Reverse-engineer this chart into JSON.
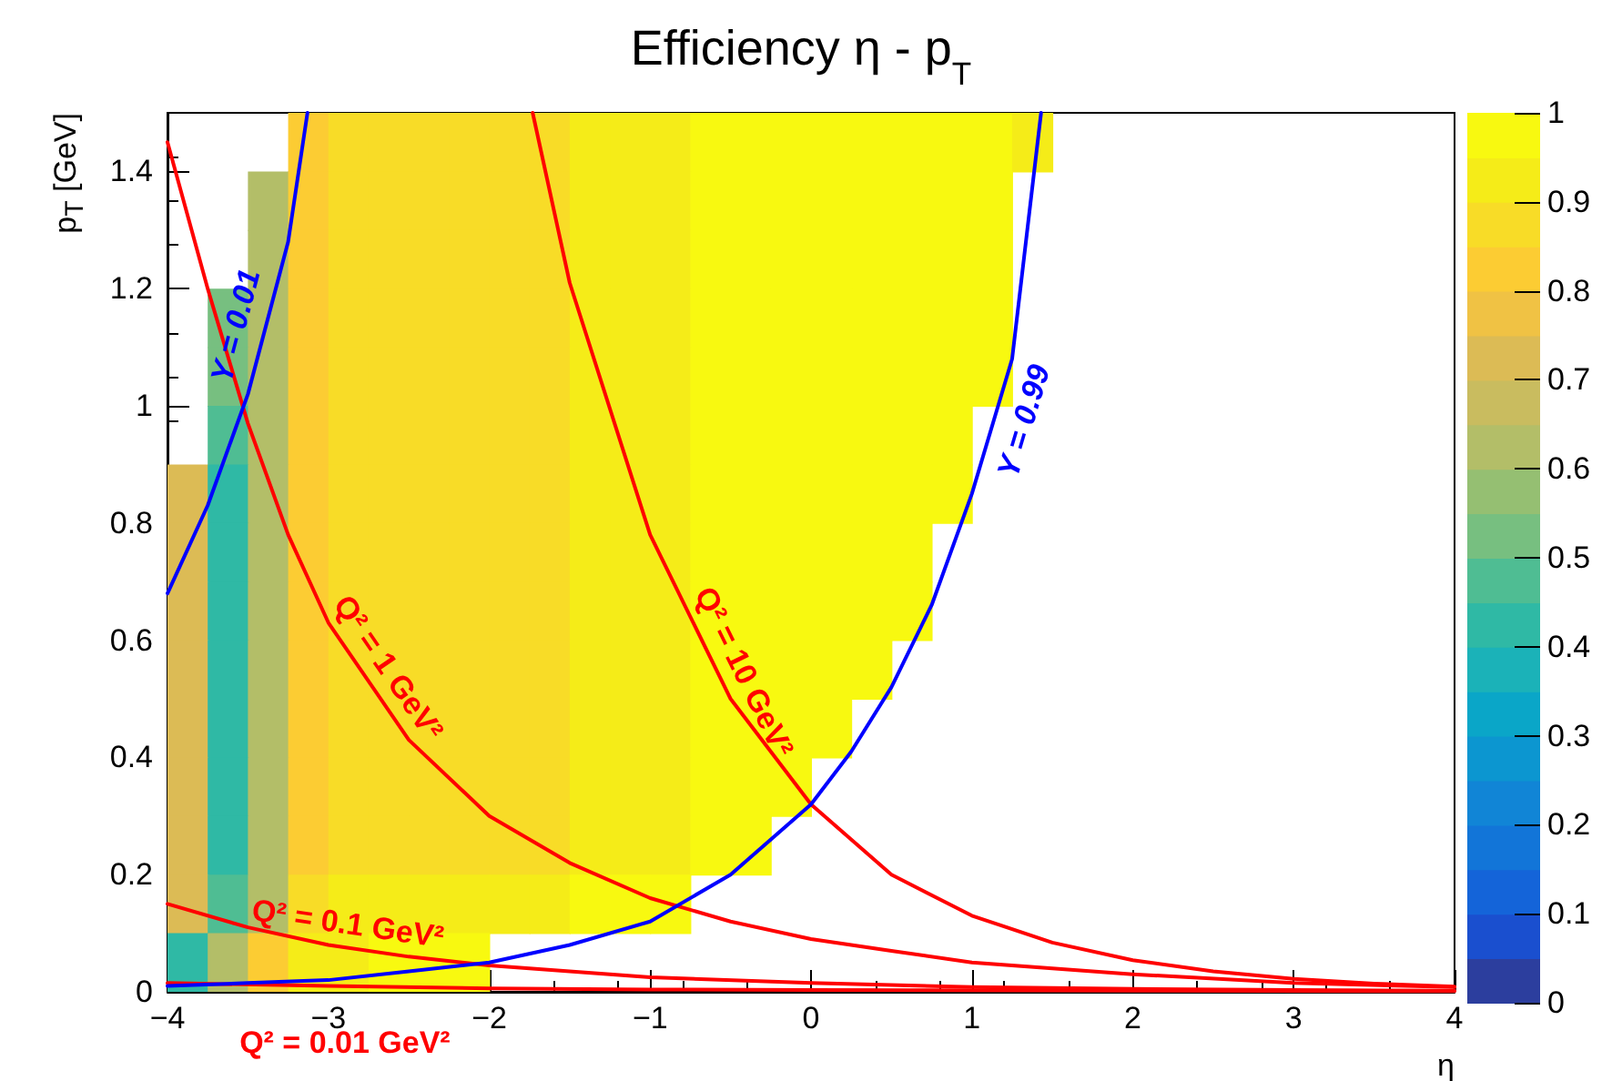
{
  "chart_data": {
    "type": "heatmap",
    "title": "Efficiency η - p$_{T}$",
    "xlabel": "η",
    "ylabel": "p$_{T}$ [GeV]",
    "x": [
      -3.875,
      -3.625,
      -3.375,
      -3.125,
      -2.875,
      -2.625,
      -2.375,
      -2.125,
      -1.875,
      -1.625,
      -1.375,
      -1.125,
      -0.875,
      -0.625,
      -0.375,
      -0.125,
      0.125,
      0.375,
      0.625,
      0.875,
      1.125,
      1.375
    ],
    "y": [
      1.45,
      1.35,
      1.25,
      1.15,
      1.05,
      0.95,
      0.85,
      0.75,
      0.65,
      0.55,
      0.45,
      0.35,
      0.25,
      0.15,
      0.05
    ],
    "cells": [
      [
        null,
        null,
        null,
        0.8,
        0.85,
        0.85,
        0.85,
        0.87,
        0.87,
        0.88,
        0.9,
        0.9,
        0.92,
        0.95,
        0.97,
        1,
        1,
        1,
        1,
        1,
        1,
        0.9
      ],
      [
        null,
        null,
        0.6,
        0.8,
        0.85,
        0.85,
        0.85,
        0.87,
        0.87,
        0.88,
        0.9,
        0.9,
        0.92,
        0.95,
        0.97,
        1,
        1,
        1,
        1,
        1,
        0.95,
        null
      ],
      [
        null,
        null,
        0.6,
        0.8,
        0.85,
        0.85,
        0.85,
        0.87,
        0.87,
        0.88,
        0.9,
        0.9,
        0.92,
        0.95,
        0.97,
        1,
        1,
        1,
        1,
        1,
        0.95,
        null
      ],
      [
        null,
        0.5,
        0.6,
        0.8,
        0.85,
        0.85,
        0.85,
        0.87,
        0.87,
        0.88,
        0.9,
        0.9,
        0.92,
        0.95,
        0.97,
        1,
        1,
        1,
        1,
        1,
        0.95,
        null
      ],
      [
        null,
        0.5,
        0.6,
        0.8,
        0.85,
        0.85,
        0.85,
        0.87,
        0.87,
        0.88,
        0.9,
        0.9,
        0.92,
        0.95,
        0.97,
        1,
        1,
        1,
        1,
        1,
        0.95,
        null
      ],
      [
        null,
        0.45,
        0.6,
        0.8,
        0.85,
        0.85,
        0.85,
        0.87,
        0.87,
        0.88,
        0.9,
        0.9,
        0.92,
        0.95,
        0.97,
        1,
        1,
        1,
        1,
        1,
        null,
        null
      ],
      [
        0.7,
        0.4,
        0.6,
        0.8,
        0.85,
        0.85,
        0.85,
        0.87,
        0.87,
        0.88,
        0.9,
        0.9,
        0.92,
        0.95,
        0.97,
        1,
        1,
        1,
        1,
        1,
        null,
        null
      ],
      [
        0.7,
        0.4,
        0.6,
        0.8,
        0.85,
        0.85,
        0.85,
        0.87,
        0.87,
        0.88,
        0.9,
        0.9,
        0.92,
        0.95,
        0.97,
        1,
        1,
        1,
        1,
        null,
        null,
        null
      ],
      [
        0.7,
        0.4,
        0.6,
        0.8,
        0.85,
        0.85,
        0.85,
        0.87,
        0.87,
        0.88,
        0.9,
        0.9,
        0.92,
        0.95,
        0.97,
        1,
        1,
        1,
        1,
        null,
        null,
        null
      ],
      [
        0.7,
        0.4,
        0.6,
        0.8,
        0.85,
        0.85,
        0.85,
        0.87,
        0.87,
        0.88,
        0.9,
        0.9,
        0.92,
        0.95,
        0.97,
        1,
        1,
        1,
        null,
        null,
        null,
        null
      ],
      [
        0.7,
        0.4,
        0.6,
        0.8,
        0.85,
        0.85,
        0.85,
        0.87,
        0.87,
        0.88,
        0.9,
        0.9,
        0.92,
        0.95,
        0.97,
        1,
        1,
        null,
        null,
        null,
        null,
        null
      ],
      [
        0.7,
        0.4,
        0.6,
        0.8,
        0.85,
        0.85,
        0.85,
        0.87,
        0.87,
        0.88,
        0.9,
        0.9,
        0.92,
        0.95,
        0.97,
        1,
        null,
        null,
        null,
        null,
        null,
        null
      ],
      [
        0.7,
        0.4,
        0.6,
        0.8,
        0.85,
        0.85,
        0.85,
        0.87,
        0.87,
        0.88,
        0.9,
        0.9,
        0.92,
        0.95,
        0.97,
        null,
        null,
        null,
        null,
        null,
        null,
        null
      ],
      [
        0.7,
        0.45,
        0.6,
        0.85,
        0.9,
        0.9,
        0.9,
        0.92,
        0.92,
        0.93,
        0.95,
        0.95,
        0.97,
        null,
        null,
        null,
        null,
        null,
        null,
        null,
        null,
        null
      ],
      [
        0.4,
        0.6,
        0.8,
        0.9,
        0.92,
        0.95,
        0.95,
        0.97,
        null,
        null,
        null,
        null,
        null,
        null,
        null,
        null,
        null,
        null,
        null,
        null,
        null,
        null
      ]
    ],
    "clim": [
      0,
      1
    ],
    "cticks": [
      0,
      0.1,
      0.2,
      0.3,
      0.4,
      0.5,
      0.6,
      0.7,
      0.8,
      0.9,
      1
    ],
    "xlim": [
      -4,
      4
    ],
    "xticks": [
      -4,
      -3,
      -2,
      -1,
      0,
      1,
      2,
      3,
      4
    ],
    "ylim": [
      0,
      1.5
    ],
    "yticks": [
      0,
      0.2,
      0.4,
      0.6,
      0.8,
      1,
      1.2,
      1.4
    ],
    "legend": false,
    "series": [
      {
        "type": "line",
        "name": "Q² = 0.01 GeV²",
        "color": "#ff0000",
        "x": [
          -4,
          -3,
          -2,
          -1,
          0,
          2,
          4
        ],
        "values": [
          0.015,
          0.01,
          0.006,
          0.004,
          0.003,
          0.002,
          0.001
        ]
      },
      {
        "type": "line",
        "name": "Q² = 0.1 GeV²",
        "color": "#ff0000",
        "x": [
          -4,
          -3.5,
          -3,
          -2.5,
          -2,
          -1,
          0,
          1,
          2,
          3,
          4
        ],
        "values": [
          0.15,
          0.11,
          0.08,
          0.06,
          0.045,
          0.025,
          0.015,
          0.008,
          0.005,
          0.003,
          0.002
        ]
      },
      {
        "type": "line",
        "name": "Q² = 1 GeV²",
        "color": "#ff0000",
        "x": [
          -4,
          -3.75,
          -3.5,
          -3.25,
          -3,
          -2.5,
          -2,
          -1.5,
          -1,
          -0.5,
          0,
          0.5,
          1,
          2,
          3,
          4
        ],
        "values": [
          1.45,
          1.2,
          0.97,
          0.78,
          0.63,
          0.43,
          0.3,
          0.22,
          0.16,
          0.12,
          0.09,
          0.07,
          0.05,
          0.03,
          0.015,
          0.008
        ]
      },
      {
        "type": "line",
        "name": "Q² = 10 GeV²",
        "color": "#ff0000",
        "x": [
          -1.73,
          -1.5,
          -1,
          -0.5,
          0,
          0.5,
          1,
          1.5,
          2,
          2.5,
          3,
          3.5,
          4
        ],
        "values": [
          1.5,
          1.21,
          0.78,
          0.5,
          0.32,
          0.2,
          0.13,
          0.084,
          0.054,
          0.035,
          0.022,
          0.014,
          0.009
        ]
      },
      {
        "type": "line",
        "name": "Y = 0.01",
        "color": "#0000ff",
        "x": [
          -4,
          -3.75,
          -3.5,
          -3.25,
          -3.13
        ],
        "values": [
          0.68,
          0.83,
          1.02,
          1.28,
          1.5
        ]
      },
      {
        "type": "line",
        "name": "Y = 0.99",
        "color": "#0000ff",
        "x": [
          -4,
          -3.5,
          -3,
          -2.5,
          -2,
          -1.5,
          -1,
          -0.5,
          0,
          0.25,
          0.5,
          0.75,
          1,
          1.25,
          1.43
        ],
        "values": [
          0.01,
          0.015,
          0.02,
          0.035,
          0.05,
          0.08,
          0.12,
          0.2,
          0.32,
          0.41,
          0.52,
          0.66,
          0.85,
          1.08,
          1.5
        ]
      }
    ]
  }
}
